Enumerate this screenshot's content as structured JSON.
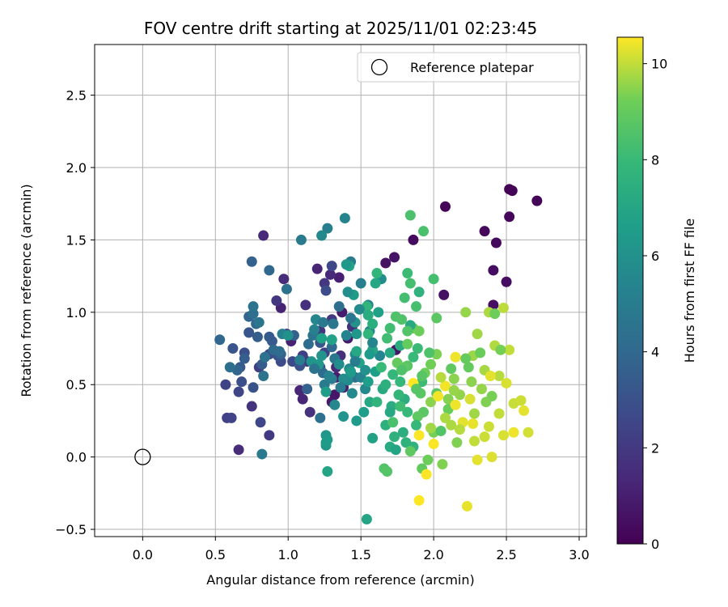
{
  "chart_data": {
    "type": "scatter",
    "title": "FOV centre drift starting at 2025/11/01 02:23:45",
    "xlabel": "Angular distance from reference (arcmin)",
    "ylabel": "Rotation from reference (arcmin)",
    "xlim": [
      -0.33,
      3.05
    ],
    "ylim": [
      -0.55,
      2.85
    ],
    "xticks": [
      0.0,
      0.5,
      1.0,
      1.5,
      2.0,
      2.5,
      3.0
    ],
    "xtick_labels": [
      "0.0",
      "0.5",
      "1.0",
      "1.5",
      "2.0",
      "2.5",
      "3.0"
    ],
    "yticks": [
      -0.5,
      0.0,
      0.5,
      1.0,
      1.5,
      2.0,
      2.5
    ],
    "ytick_labels": [
      "−0.5",
      "0.0",
      "0.5",
      "1.0",
      "1.5",
      "2.0",
      "2.5"
    ],
    "grid": true,
    "legend": {
      "label": "Reference platepar",
      "position": "top-right"
    },
    "reference_point": {
      "x": 0.0,
      "y": 0.0
    },
    "colorbar": {
      "label": "Hours from first FF file",
      "range": [
        0,
        10.55
      ],
      "ticks": [
        0,
        2,
        4,
        6,
        8,
        10
      ],
      "tick_labels": [
        "0",
        "2",
        "4",
        "6",
        "8",
        "10"
      ],
      "colormap": "viridis"
    },
    "points": [
      [
        2.52,
        1.85,
        0.05
      ],
      [
        2.54,
        1.84,
        0.08
      ],
      [
        2.71,
        1.77,
        0.1
      ],
      [
        2.08,
        1.73,
        0.15
      ],
      [
        2.52,
        1.66,
        0.2
      ],
      [
        2.35,
        1.56,
        0.25
      ],
      [
        2.43,
        1.48,
        0.3
      ],
      [
        1.86,
        1.5,
        0.35
      ],
      [
        2.41,
        1.29,
        0.4
      ],
      [
        2.5,
        1.21,
        0.45
      ],
      [
        2.41,
        1.05,
        0.5
      ],
      [
        2.07,
        1.12,
        0.55
      ],
      [
        1.67,
        1.34,
        0.6
      ],
      [
        1.73,
        1.38,
        0.65
      ],
      [
        1.74,
        0.74,
        0.7
      ],
      [
        1.32,
        0.43,
        0.75
      ],
      [
        1.3,
        0.38,
        0.8
      ],
      [
        1.37,
        1.0,
        0.85
      ],
      [
        1.41,
        0.82,
        0.9
      ],
      [
        1.33,
        0.55,
        0.95
      ],
      [
        1.38,
        0.48,
        1.0
      ],
      [
        1.35,
        1.24,
        1.05
      ],
      [
        1.02,
        0.8,
        1.1
      ],
      [
        0.95,
        1.03,
        1.15
      ],
      [
        1.2,
        1.3,
        1.2
      ],
      [
        1.1,
        0.4,
        1.25
      ],
      [
        1.08,
        0.46,
        1.3
      ],
      [
        1.33,
        0.62,
        1.35
      ],
      [
        0.83,
        1.53,
        1.4
      ],
      [
        1.29,
        1.26,
        1.45
      ],
      [
        0.66,
        0.05,
        1.5
      ],
      [
        0.97,
        1.23,
        1.55
      ],
      [
        1.12,
        1.05,
        1.6
      ],
      [
        1.36,
        0.7,
        1.65
      ],
      [
        1.44,
        0.9,
        1.7
      ],
      [
        1.15,
        0.31,
        1.75
      ],
      [
        0.75,
        0.35,
        1.8
      ],
      [
        1.22,
        0.87,
        1.85
      ],
      [
        1.25,
        1.2,
        1.9
      ],
      [
        0.92,
        1.08,
        1.95
      ],
      [
        1.3,
        0.95,
        2.0
      ],
      [
        0.87,
        0.15,
        2.05
      ],
      [
        0.99,
        0.85,
        2.1
      ],
      [
        1.13,
        0.66,
        2.15
      ],
      [
        1.1,
        0.7,
        2.2
      ],
      [
        0.8,
        0.62,
        2.25
      ],
      [
        1.25,
        0.72,
        2.3
      ],
      [
        0.58,
        0.27,
        2.35
      ],
      [
        0.61,
        0.27,
        2.4
      ],
      [
        0.57,
        0.5,
        2.45
      ],
      [
        0.66,
        0.45,
        2.5
      ],
      [
        0.81,
        0.24,
        2.55
      ],
      [
        1.3,
        1.32,
        2.6
      ],
      [
        1.22,
        0.62,
        2.65
      ],
      [
        1.03,
        0.66,
        2.7
      ],
      [
        0.95,
        0.66,
        2.75
      ],
      [
        1.26,
        1.15,
        2.8
      ],
      [
        0.87,
        0.71,
        2.85
      ],
      [
        0.68,
        0.52,
        2.9
      ],
      [
        0.7,
        0.72,
        2.95
      ],
      [
        0.76,
        0.48,
        3.0
      ],
      [
        1.08,
        0.63,
        3.05
      ],
      [
        0.93,
        0.7,
        3.1
      ],
      [
        0.62,
        0.75,
        3.15
      ],
      [
        0.73,
        0.86,
        3.2
      ],
      [
        1.22,
        0.79,
        3.25
      ],
      [
        0.67,
        0.62,
        3.3
      ],
      [
        0.87,
        0.83,
        3.35
      ],
      [
        0.89,
        0.8,
        3.4
      ],
      [
        0.82,
        0.64,
        3.45
      ],
      [
        0.79,
        0.83,
        3.5
      ],
      [
        0.7,
        0.68,
        3.55
      ],
      [
        1.04,
        0.84,
        3.6
      ],
      [
        1.13,
        0.47,
        3.65
      ],
      [
        0.75,
        1.35,
        3.7
      ],
      [
        0.95,
        0.71,
        3.75
      ],
      [
        0.65,
        0.6,
        3.8
      ],
      [
        0.73,
        0.97,
        3.85
      ],
      [
        0.53,
        0.81,
        3.9
      ],
      [
        0.78,
        0.92,
        3.95
      ],
      [
        0.87,
        1.29,
        4.0
      ],
      [
        1.3,
        0.76,
        4.05
      ],
      [
        0.9,
        0.74,
        4.1
      ],
      [
        0.94,
        0.73,
        4.15
      ],
      [
        1.24,
        0.58,
        4.2
      ],
      [
        0.76,
        0.99,
        4.25
      ],
      [
        0.6,
        0.62,
        4.3
      ],
      [
        1.46,
        0.55,
        4.35
      ],
      [
        0.99,
        1.16,
        4.4
      ],
      [
        0.84,
        0.69,
        4.45
      ],
      [
        0.83,
        0.56,
        4.5
      ],
      [
        0.76,
        1.04,
        4.55
      ],
      [
        0.8,
        0.93,
        4.6
      ],
      [
        1.17,
        0.84,
        4.65
      ],
      [
        1.3,
        0.81,
        4.7
      ],
      [
        1.32,
        0.68,
        4.75
      ],
      [
        0.82,
        0.02,
        4.8
      ],
      [
        1.09,
        1.5,
        4.85
      ],
      [
        1.43,
        1.35,
        4.9
      ],
      [
        1.25,
        0.5,
        4.95
      ],
      [
        1.3,
        0.54,
        5.0
      ],
      [
        1.08,
        0.67,
        5.05
      ],
      [
        1.27,
        1.58,
        5.1
      ],
      [
        0.96,
        0.85,
        5.15
      ],
      [
        1.18,
        0.88,
        5.2
      ],
      [
        1.5,
        0.55,
        5.25
      ],
      [
        1.55,
        1.05,
        5.3
      ],
      [
        1.4,
        0.84,
        5.35
      ],
      [
        1.63,
        0.7,
        5.4
      ],
      [
        1.56,
        0.87,
        5.45
      ],
      [
        1.19,
        0.95,
        5.5
      ],
      [
        1.23,
        1.53,
        5.55
      ],
      [
        1.53,
        0.47,
        5.6
      ],
      [
        1.42,
        0.61,
        5.65
      ],
      [
        1.41,
        0.53,
        5.7
      ],
      [
        1.46,
        0.71,
        5.75
      ],
      [
        1.64,
        1.23,
        5.8
      ],
      [
        1.38,
        0.54,
        5.85
      ],
      [
        1.43,
        0.58,
        5.9
      ],
      [
        1.0,
        0.84,
        6.0
      ],
      [
        1.46,
        0.93,
        6.05
      ],
      [
        1.23,
        0.7,
        6.1
      ],
      [
        1.16,
        0.66,
        6.15
      ],
      [
        1.26,
        0.15,
        6.2
      ],
      [
        1.26,
        0.08,
        6.25
      ],
      [
        1.21,
        0.64,
        6.3
      ],
      [
        1.27,
        0.12,
        6.35
      ],
      [
        1.47,
        0.25,
        6.4
      ],
      [
        1.43,
        0.59,
        6.45
      ],
      [
        1.26,
        0.1,
        6.5
      ],
      [
        1.26,
        0.45,
        6.55
      ],
      [
        1.55,
        0.52,
        6.6
      ],
      [
        1.6,
        0.59,
        6.65
      ],
      [
        1.23,
        0.82,
        6.7
      ],
      [
        1.58,
        0.13,
        6.75
      ],
      [
        1.3,
        0.81,
        6.8
      ],
      [
        1.42,
        1.32,
        6.85
      ],
      [
        1.27,
        -0.1,
        6.9
      ],
      [
        1.54,
        -0.43,
        6.95
      ],
      [
        1.6,
        1.2,
        7.0
      ],
      [
        1.47,
        0.73,
        7.05
      ],
      [
        1.56,
        0.38,
        7.1
      ],
      [
        1.7,
        0.72,
        7.15
      ],
      [
        1.65,
        0.47,
        7.2
      ],
      [
        1.7,
        0.07,
        7.25
      ],
      [
        1.77,
        0.77,
        7.3
      ],
      [
        1.71,
        0.35,
        7.35
      ],
      [
        1.8,
        0.4,
        7.4
      ],
      [
        1.58,
        0.92,
        7.45
      ],
      [
        1.67,
        0.22,
        7.5
      ],
      [
        1.73,
        0.14,
        7.55
      ],
      [
        1.81,
        0.1,
        7.6
      ],
      [
        1.86,
        0.07,
        7.65
      ],
      [
        1.54,
        1.04,
        7.7
      ],
      [
        1.55,
        0.85,
        7.75
      ],
      [
        1.61,
        1.27,
        7.8
      ],
      [
        1.72,
        0.57,
        7.85
      ],
      [
        1.77,
        0.52,
        7.9
      ],
      [
        1.82,
        0.31,
        7.95
      ],
      [
        1.86,
        0.69,
        8.0
      ],
      [
        1.89,
        0.75,
        8.05
      ],
      [
        1.92,
        0.52,
        8.1
      ],
      [
        1.77,
        0.35,
        8.15
      ],
      [
        1.68,
        0.82,
        8.2
      ],
      [
        1.8,
        1.1,
        8.25
      ],
      [
        1.84,
        1.2,
        8.3
      ],
      [
        1.88,
        1.04,
        8.35
      ],
      [
        1.93,
        1.56,
        8.4
      ],
      [
        1.84,
        1.67,
        8.45
      ],
      [
        1.74,
        0.97,
        8.5
      ],
      [
        1.78,
        0.95,
        8.55
      ],
      [
        1.66,
        -0.08,
        8.6
      ],
      [
        1.68,
        -0.1,
        8.65
      ],
      [
        1.82,
        0.63,
        8.7
      ],
      [
        1.91,
        0.44,
        8.75
      ],
      [
        1.93,
        0.31,
        8.8
      ],
      [
        1.8,
        0.62,
        8.85
      ],
      [
        1.89,
        0.28,
        8.9
      ],
      [
        1.92,
        -0.08,
        8.95
      ],
      [
        1.75,
        0.65,
        9.0
      ],
      [
        1.82,
        0.78,
        9.05
      ],
      [
        1.86,
        0.89,
        9.1
      ],
      [
        1.9,
        0.87,
        9.15
      ],
      [
        1.94,
        0.58,
        9.2
      ],
      [
        1.98,
        0.64,
        9.25
      ],
      [
        2.0,
        0.17,
        9.3
      ],
      [
        2.02,
        0.71,
        9.35
      ],
      [
        2.06,
        -0.05,
        9.4
      ],
      [
        2.1,
        0.4,
        9.45
      ],
      [
        2.14,
        0.54,
        9.5
      ],
      [
        2.18,
        0.43,
        9.55
      ],
      [
        2.22,
        1.0,
        9.6
      ],
      [
        2.27,
        0.7,
        9.65
      ],
      [
        2.3,
        0.85,
        9.7
      ],
      [
        2.35,
        0.6,
        9.75
      ],
      [
        2.38,
        1.0,
        9.8
      ],
      [
        2.42,
        0.77,
        9.85
      ],
      [
        2.45,
        0.56,
        9.9
      ],
      [
        2.48,
        1.03,
        9.95
      ],
      [
        2.52,
        0.74,
        10.0
      ],
      [
        2.55,
        0.37,
        10.05
      ],
      [
        2.6,
        0.39,
        10.1
      ],
      [
        2.65,
        0.17,
        10.15
      ],
      [
        2.5,
        0.51,
        10.2
      ],
      [
        2.4,
        0.0,
        10.25
      ],
      [
        2.3,
        -0.02,
        10.3
      ],
      [
        2.23,
        -0.34,
        10.35
      ],
      [
        2.15,
        0.69,
        10.4
      ],
      [
        2.08,
        0.49,
        10.45
      ],
      [
        2.0,
        0.09,
        10.5
      ],
      [
        1.95,
        -0.12,
        10.52
      ],
      [
        1.9,
        -0.3,
        10.54
      ],
      [
        1.86,
        0.51,
        10.55
      ],
      [
        2.2,
        0.24,
        10.3
      ],
      [
        2.25,
        0.4,
        10.2
      ],
      [
        2.35,
        0.14,
        10.1
      ],
      [
        2.45,
        0.3,
        10.0
      ],
      [
        2.05,
        0.55,
        9.9
      ],
      [
        2.12,
        0.22,
        9.8
      ],
      [
        2.28,
        0.3,
        9.7
      ],
      [
        2.33,
        0.47,
        9.6
      ],
      [
        1.98,
        0.38,
        9.5
      ],
      [
        2.16,
        0.1,
        9.4
      ],
      [
        2.4,
        0.42,
        9.3
      ],
      [
        1.96,
        -0.02,
        9.2
      ],
      [
        2.1,
        0.33,
        9.1
      ],
      [
        2.24,
        0.62,
        9.0
      ],
      [
        1.84,
        0.04,
        8.9
      ],
      [
        2.02,
        0.96,
        8.8
      ],
      [
        1.88,
        0.47,
        8.7
      ],
      [
        2.05,
        0.18,
        8.6
      ],
      [
        1.97,
        0.72,
        8.5
      ],
      [
        1.72,
        0.24,
        8.4
      ],
      [
        2.0,
        1.23,
        8.3
      ],
      [
        1.7,
        0.89,
        8.2
      ],
      [
        1.82,
        1.27,
        8.1
      ],
      [
        1.64,
        0.62,
        8.0
      ],
      [
        1.88,
        0.22,
        7.9
      ],
      [
        1.76,
        0.43,
        7.8
      ],
      [
        1.61,
        0.38,
        7.7
      ],
      [
        1.9,
        1.14,
        7.6
      ],
      [
        1.67,
        0.5,
        7.5
      ],
      [
        1.79,
        0.17,
        7.4
      ],
      [
        1.55,
        0.98,
        7.3
      ],
      [
        1.84,
        0.91,
        7.2
      ],
      [
        1.7,
        0.31,
        7.1
      ],
      [
        1.58,
        0.74,
        7.0
      ],
      [
        1.74,
        0.05,
        6.9
      ],
      [
        1.49,
        0.65,
        6.8
      ],
      [
        1.62,
        1.0,
        6.7
      ],
      [
        1.52,
        0.31,
        6.6
      ],
      [
        1.45,
        1.12,
        6.5
      ],
      [
        1.56,
        0.71,
        6.4
      ],
      [
        1.4,
        1.33,
        6.3
      ],
      [
        1.47,
        0.85,
        6.2
      ],
      [
        1.38,
        0.28,
        6.1
      ],
      [
        1.53,
        0.6,
        6.0
      ],
      [
        1.41,
        1.14,
        5.9
      ],
      [
        1.35,
        0.64,
        5.8
      ],
      [
        1.49,
        1.02,
        5.7
      ],
      [
        1.44,
        0.44,
        5.6
      ],
      [
        1.32,
        0.36,
        5.5
      ],
      [
        1.58,
        0.79,
        5.4
      ],
      [
        1.39,
        1.65,
        5.3
      ],
      [
        1.28,
        0.56,
        5.2
      ],
      [
        1.5,
        1.2,
        5.1
      ],
      [
        1.36,
        0.48,
        5.0
      ],
      [
        1.46,
        0.66,
        4.9
      ],
      [
        1.24,
        0.93,
        4.8
      ],
      [
        1.31,
        0.92,
        4.7
      ],
      [
        1.43,
        0.96,
        4.6
      ],
      [
        1.18,
        0.61,
        4.5
      ],
      [
        1.22,
        0.27,
        4.4
      ],
      [
        1.35,
        1.04,
        4.3
      ],
      [
        1.14,
        0.78,
        4.2
      ],
      [
        2.55,
        0.17,
        10.4
      ],
      [
        2.62,
        0.32,
        10.3
      ],
      [
        2.48,
        0.15,
        10.2
      ],
      [
        2.38,
        0.21,
        10.1
      ],
      [
        2.28,
        0.11,
        10.0
      ],
      [
        2.18,
        0.19,
        9.9
      ],
      [
        2.08,
        0.27,
        9.8
      ],
      [
        1.98,
        0.2,
        9.7
      ],
      [
        2.14,
        0.46,
        9.6
      ],
      [
        2.26,
        0.52,
        9.5
      ],
      [
        2.36,
        0.38,
        9.4
      ],
      [
        2.46,
        0.74,
        9.3
      ],
      [
        2.42,
        0.99,
        9.2
      ],
      [
        2.32,
        0.72,
        9.1
      ],
      [
        2.22,
        0.68,
        9.0
      ],
      [
        2.12,
        0.61,
        8.9
      ],
      [
        2.02,
        0.44,
        8.8
      ],
      [
        1.92,
        0.56,
        8.7
      ],
      [
        1.82,
        0.87,
        8.6
      ],
      [
        1.78,
        0.6,
        8.5
      ],
      [
        1.9,
        0.15,
        10.5
      ],
      [
        2.03,
        0.42,
        10.45
      ],
      [
        2.15,
        0.36,
        10.4
      ],
      [
        2.27,
        0.23,
        10.35
      ],
      [
        2.39,
        0.56,
        10.3
      ]
    ]
  }
}
